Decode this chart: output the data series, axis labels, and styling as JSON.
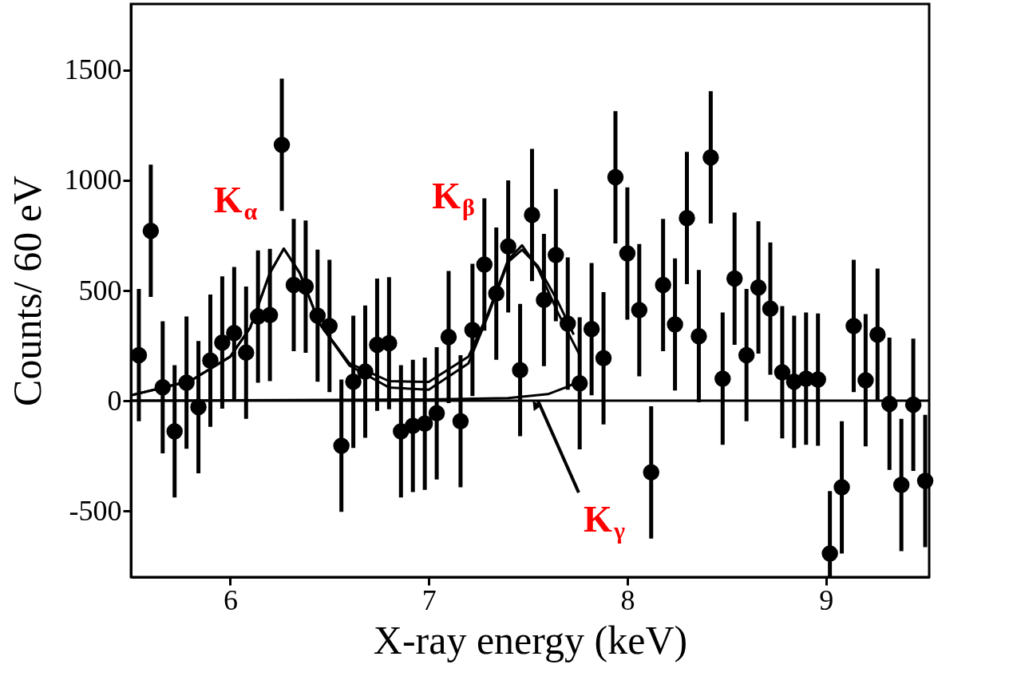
{
  "chart_data": {
    "type": "scatter",
    "xlabel": "X-ray energy (keV)",
    "ylabel": "Counts/ 60 eV",
    "xlim": [
      5.5,
      9.52
    ],
    "ylim": [
      -800,
      1800
    ],
    "xticks": [
      6,
      7,
      8,
      9
    ],
    "yticks": [
      -500,
      0,
      500,
      1000,
      1500
    ],
    "grid": false,
    "marker": "circle",
    "series": [
      {
        "color": "#000000",
        "x": [
          5.54,
          5.6,
          5.66,
          5.72,
          5.78,
          5.84,
          5.9,
          5.96,
          6.02,
          6.08,
          6.14,
          6.2,
          6.26,
          6.32,
          6.38,
          6.44,
          6.5,
          6.56,
          6.62,
          6.68,
          6.74,
          6.8,
          6.86,
          6.92,
          6.98,
          7.04,
          7.1,
          7.16,
          7.22,
          7.28,
          7.34,
          7.4,
          7.46,
          7.52,
          7.58,
          7.64,
          7.7,
          7.76,
          7.82,
          7.88,
          7.94,
          8.0,
          8.06,
          8.12,
          8.18,
          8.24,
          8.3,
          8.36,
          8.42,
          8.48,
          8.54,
          8.6,
          8.66,
          8.72,
          8.78,
          8.84,
          8.9,
          8.96,
          9.02,
          9.08,
          9.14,
          9.2,
          9.26,
          9.32,
          9.38,
          9.44,
          9.5
        ],
        "values": [
          207,
          771,
          61,
          -139,
          82,
          -29,
          182,
          264,
          307,
          218,
          382,
          389,
          1161,
          525,
          518,
          386,
          339,
          -204,
          86,
          132,
          254,
          261,
          -139,
          -114,
          -104,
          -57,
          289,
          -93,
          321,
          618,
          486,
          700,
          139,
          843,
          457,
          661,
          350,
          79,
          325,
          193,
          1014,
          668,
          411,
          -325,
          525,
          346,
          829,
          293,
          1104,
          100,
          554,
          207,
          514,
          418,
          129,
          86,
          100,
          96,
          -693,
          -393,
          339,
          93,
          300,
          -14,
          -382,
          -18,
          -364
        ],
        "errors": [
          300,
          300,
          300,
          300,
          300,
          300,
          300,
          300,
          300,
          300,
          300,
          300,
          300,
          300,
          300,
          300,
          300,
          300,
          300,
          300,
          300,
          300,
          300,
          300,
          300,
          300,
          300,
          300,
          300,
          300,
          300,
          300,
          300,
          300,
          300,
          300,
          300,
          300,
          300,
          300,
          300,
          300,
          300,
          300,
          300,
          300,
          300,
          300,
          300,
          300,
          300,
          300,
          300,
          300,
          300,
          300,
          300,
          300,
          [
            -800,
            -410
          ],
          300,
          300,
          300,
          300,
          300,
          300,
          300,
          300
        ]
      },
      {
        "type": "line",
        "color": "#000000",
        "marker": "none",
        "x": [
          5.5,
          5.8,
          6.0,
          6.1,
          6.2,
          6.27,
          6.35,
          6.45,
          6.6,
          6.8,
          7.0,
          7.2,
          7.3,
          7.4,
          7.47,
          7.55,
          7.65,
          7.76
        ],
        "values": [
          25,
          90,
          200,
          330,
          580,
          690,
          580,
          350,
          170,
          89,
          85,
          200,
          400,
          640,
          705,
          600,
          400,
          207
        ]
      },
      {
        "type": "line",
        "color": "#000000",
        "marker": "none",
        "x": [
          5.5,
          5.8,
          6.0,
          6.1,
          6.2,
          6.27,
          6.35,
          6.45,
          6.6,
          6.8,
          7.0,
          7.2,
          7.3,
          7.4,
          7.47,
          7.55,
          7.65,
          7.73
        ],
        "values": [
          25,
          90,
          200,
          330,
          580,
          690,
          580,
          350,
          160,
          60,
          50,
          170,
          390,
          630,
          685,
          610,
          450,
          300
        ]
      },
      {
        "type": "line",
        "color": "#000000",
        "marker": "none",
        "x": [
          5.5,
          6.0,
          6.5,
          7.0,
          7.4,
          7.6,
          7.7,
          7.76
        ],
        "values": [
          0,
          2,
          4,
          6,
          12,
          30,
          64,
          90
        ]
      }
    ],
    "ref_lines": [
      {
        "axis": "y",
        "value": 0,
        "color": "#000000"
      }
    ],
    "annotations": [
      {
        "text": "K$_{α}$",
        "x": 6.27,
        "y": 690
      },
      {
        "text": "K$_{β}$",
        "x": 7.47,
        "y": 705
      },
      {
        "text": "K$_{γ}$",
        "x": 7.55,
        "y": 0
      }
    ]
  }
}
